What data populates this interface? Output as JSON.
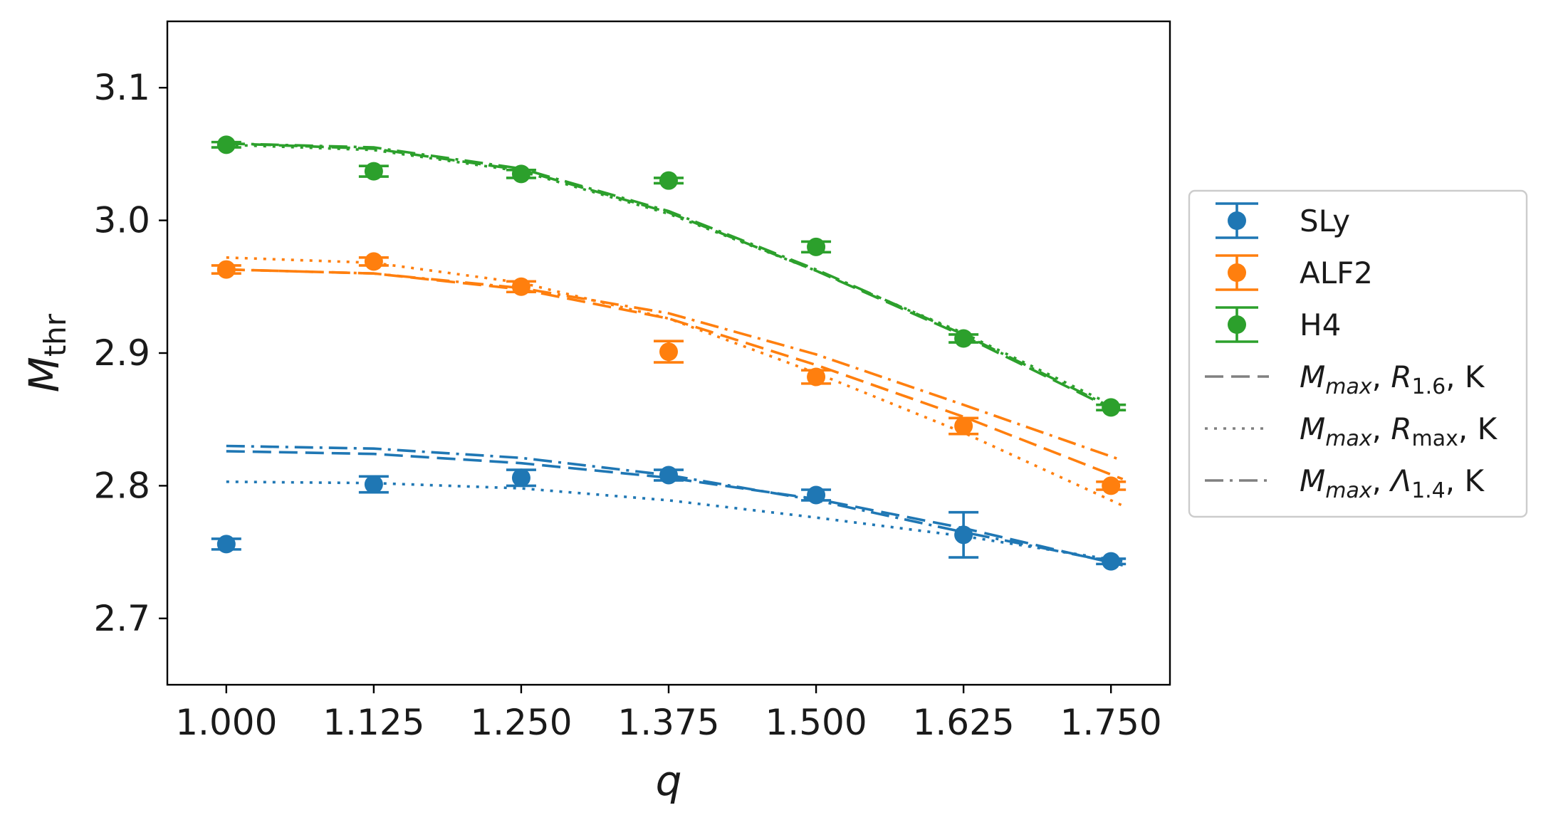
{
  "chart_data": {
    "type": "scatter",
    "xlabel": "q",
    "ylabel": {
      "main": "M",
      "sub": "thr"
    },
    "xlim": [
      0.95,
      1.8
    ],
    "ylim": [
      2.65,
      3.15
    ],
    "xticks": [
      1.0,
      1.125,
      1.25,
      1.375,
      1.5,
      1.625,
      1.75
    ],
    "xtick_labels": [
      "1.000",
      "1.125",
      "1.250",
      "1.375",
      "1.500",
      "1.625",
      "1.750"
    ],
    "yticks": [
      2.7,
      2.8,
      2.9,
      3.0,
      3.1
    ],
    "ytick_labels": [
      "2.7",
      "2.8",
      "2.9",
      "3.0",
      "3.1"
    ],
    "grid": false,
    "legend_position": "outside-right",
    "series": [
      {
        "name": "SLy",
        "color": "#1f77b4",
        "points": [
          {
            "x": 1.0,
            "y": 2.756,
            "err": 0.004
          },
          {
            "x": 1.125,
            "y": 2.801,
            "err": 0.006
          },
          {
            "x": 1.25,
            "y": 2.806,
            "err": 0.006
          },
          {
            "x": 1.375,
            "y": 2.808,
            "err": 0.004
          },
          {
            "x": 1.5,
            "y": 2.793,
            "err": 0.004
          },
          {
            "x": 1.625,
            "y": 2.763,
            "err": 0.017
          },
          {
            "x": 1.75,
            "y": 2.743,
            "err": 0.002
          }
        ],
        "fits": {
          "dashed": {
            "x": [
              1.0,
              1.125,
              1.25,
              1.375,
              1.5,
              1.625,
              1.76
            ],
            "y": [
              2.826,
              2.824,
              2.817,
              2.806,
              2.79,
              2.768,
              2.74
            ]
          },
          "dotted": {
            "x": [
              1.0,
              1.125,
              1.25,
              1.375,
              1.5,
              1.625,
              1.76
            ],
            "y": [
              2.803,
              2.802,
              2.798,
              2.789,
              2.776,
              2.762,
              2.743
            ]
          },
          "dashdot": {
            "x": [
              1.0,
              1.125,
              1.25,
              1.375,
              1.5,
              1.625,
              1.76
            ],
            "y": [
              2.83,
              2.828,
              2.821,
              2.808,
              2.789,
              2.765,
              2.741
            ]
          }
        }
      },
      {
        "name": "ALF2",
        "color": "#ff7f0e",
        "points": [
          {
            "x": 1.0,
            "y": 2.963,
            "err": 0.003
          },
          {
            "x": 1.125,
            "y": 2.969,
            "err": 0.003
          },
          {
            "x": 1.25,
            "y": 2.95,
            "err": 0.004
          },
          {
            "x": 1.375,
            "y": 2.901,
            "err": 0.008
          },
          {
            "x": 1.5,
            "y": 2.882,
            "err": 0.005
          },
          {
            "x": 1.625,
            "y": 2.845,
            "err": 0.006
          },
          {
            "x": 1.75,
            "y": 2.8,
            "err": 0.003
          }
        ],
        "fits": {
          "dashed": {
            "x": [
              1.0,
              1.125,
              1.25,
              1.375,
              1.5,
              1.625,
              1.76
            ],
            "y": [
              2.963,
              2.96,
              2.948,
              2.926,
              2.891,
              2.852,
              2.805
            ]
          },
          "dotted": {
            "x": [
              1.0,
              1.125,
              1.25,
              1.375,
              1.5,
              1.625,
              1.76
            ],
            "y": [
              2.972,
              2.968,
              2.953,
              2.926,
              2.885,
              2.84,
              2.785
            ]
          },
          "dashdot": {
            "x": [
              1.0,
              1.125,
              1.25,
              1.375,
              1.5,
              1.625,
              1.76
            ],
            "y": [
              2.963,
              2.96,
              2.949,
              2.93,
              2.899,
              2.861,
              2.819
            ]
          }
        }
      },
      {
        "name": "H4",
        "color": "#2ca02c",
        "points": [
          {
            "x": 1.0,
            "y": 3.057,
            "err": 0.002
          },
          {
            "x": 1.125,
            "y": 3.037,
            "err": 0.004
          },
          {
            "x": 1.25,
            "y": 3.035,
            "err": 0.003
          },
          {
            "x": 1.375,
            "y": 3.03,
            "err": 0.002
          },
          {
            "x": 1.5,
            "y": 2.98,
            "err": 0.004
          },
          {
            "x": 1.625,
            "y": 2.911,
            "err": 0.003
          },
          {
            "x": 1.75,
            "y": 2.859,
            "err": 0.002
          }
        ],
        "fits": {
          "dashed": {
            "x": [
              1.0,
              1.125,
              1.25,
              1.375,
              1.5,
              1.625,
              1.76
            ],
            "y": [
              3.058,
              3.054,
              3.038,
              3.006,
              2.962,
              2.913,
              2.854
            ]
          },
          "dotted": {
            "x": [
              1.0,
              1.125,
              1.25,
              1.375,
              1.5,
              1.625,
              1.76
            ],
            "y": [
              3.057,
              3.053,
              3.037,
              3.005,
              2.962,
              2.915,
              2.857
            ]
          },
          "dashdot": {
            "x": [
              1.0,
              1.125,
              1.25,
              1.375,
              1.5,
              1.625,
              1.76
            ],
            "y": [
              3.058,
              3.055,
              3.039,
              3.007,
              2.963,
              2.914,
              2.855
            ]
          }
        }
      }
    ],
    "legend": {
      "entries": [
        {
          "kind": "marker",
          "label": "SLy",
          "color": "#1f77b4"
        },
        {
          "kind": "marker",
          "label": "ALF2",
          "color": "#ff7f0e"
        },
        {
          "kind": "marker",
          "label": "H4",
          "color": "#2ca02c"
        },
        {
          "kind": "line",
          "style": "dashed",
          "color": "#808080",
          "m": "M",
          "m_sub": "max",
          "p": "R",
          "p_sub": "1.6",
          "suffix": "K"
        },
        {
          "kind": "line",
          "style": "dotted",
          "color": "#808080",
          "m": "M",
          "m_sub": "max",
          "p": "R",
          "p_sub": "max",
          "suffix": "K"
        },
        {
          "kind": "line",
          "style": "dashdot",
          "color": "#808080",
          "m": "M",
          "m_sub": "max",
          "p": "Λ",
          "p_sub": "1.4",
          "suffix": "K"
        }
      ]
    }
  }
}
